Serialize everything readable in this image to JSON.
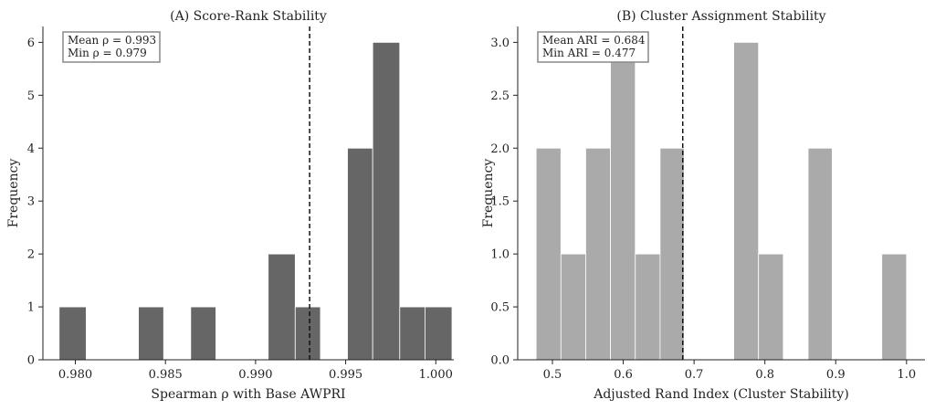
{
  "chart_data": [
    {
      "type": "bar",
      "title": "(A) Score-Rank Stability",
      "xlabel": "Spearman ρ with Base AWPRI",
      "ylabel": "Frequency",
      "xlim": [
        0.9782,
        1.001
      ],
      "ylim": [
        0,
        6.3
      ],
      "xticks": [
        0.98,
        0.985,
        0.99,
        0.995,
        1.0
      ],
      "xtick_labels": [
        "0.980",
        "0.985",
        "0.990",
        "0.995",
        "1.000"
      ],
      "yticks": [
        0,
        1,
        2,
        3,
        4,
        5,
        6
      ],
      "ytick_labels": [
        "0",
        "1",
        "2",
        "3",
        "4",
        "5",
        "6"
      ],
      "bar_color": "#666666",
      "bins": [
        {
          "x0": 0.9791,
          "x1": 0.9806,
          "value": 1
        },
        {
          "x0": 0.9806,
          "x1": 0.982,
          "value": 0
        },
        {
          "x0": 0.982,
          "x1": 0.9835,
          "value": 0
        },
        {
          "x0": 0.9835,
          "x1": 0.9849,
          "value": 1
        },
        {
          "x0": 0.9849,
          "x1": 0.9864,
          "value": 0
        },
        {
          "x0": 0.9864,
          "x1": 0.9878,
          "value": 1
        },
        {
          "x0": 0.9878,
          "x1": 0.9893,
          "value": 0
        },
        {
          "x0": 0.9893,
          "x1": 0.9907,
          "value": 0
        },
        {
          "x0": 0.9907,
          "x1": 0.9922,
          "value": 2
        },
        {
          "x0": 0.9922,
          "x1": 0.9936,
          "value": 1
        },
        {
          "x0": 0.9936,
          "x1": 0.9951,
          "value": 0
        },
        {
          "x0": 0.9951,
          "x1": 0.9965,
          "value": 4
        },
        {
          "x0": 0.9965,
          "x1": 0.998,
          "value": 6
        },
        {
          "x0": 0.998,
          "x1": 0.9994,
          "value": 1
        },
        {
          "x0": 0.9994,
          "x1": 1.0009,
          "value": 1
        }
      ],
      "mean_line": 0.993,
      "stats": [
        "Mean ρ = 0.993",
        "Min ρ = 0.979"
      ]
    },
    {
      "type": "bar",
      "title": "(B) Cluster Assignment Stability",
      "xlabel": "Adjusted Rand Index (Cluster Stability)",
      "ylabel": "Frequency",
      "xlim": [
        0.451,
        1.026
      ],
      "ylim": [
        0,
        3.15
      ],
      "xticks": [
        0.5,
        0.6,
        0.7,
        0.8,
        0.9,
        1.0
      ],
      "xtick_labels": [
        "0.5",
        "0.6",
        "0.7",
        "0.8",
        "0.9",
        "1.0"
      ],
      "yticks": [
        0,
        0.5,
        1.0,
        1.5,
        2.0,
        2.5,
        3.0
      ],
      "ytick_labels": [
        "0.0",
        "0.5",
        "1.0",
        "1.5",
        "2.0",
        "2.5",
        "3.0"
      ],
      "bar_color": "#aaaaaa",
      "bins": [
        {
          "x0": 0.477,
          "x1": 0.512,
          "value": 2
        },
        {
          "x0": 0.512,
          "x1": 0.547,
          "value": 1
        },
        {
          "x0": 0.547,
          "x1": 0.582,
          "value": 2
        },
        {
          "x0": 0.582,
          "x1": 0.617,
          "value": 3
        },
        {
          "x0": 0.617,
          "x1": 0.652,
          "value": 1
        },
        {
          "x0": 0.652,
          "x1": 0.686,
          "value": 2
        },
        {
          "x0": 0.686,
          "x1": 0.721,
          "value": 0
        },
        {
          "x0": 0.721,
          "x1": 0.756,
          "value": 0
        },
        {
          "x0": 0.756,
          "x1": 0.791,
          "value": 3
        },
        {
          "x0": 0.791,
          "x1": 0.826,
          "value": 1
        },
        {
          "x0": 0.826,
          "x1": 0.861,
          "value": 0
        },
        {
          "x0": 0.861,
          "x1": 0.895,
          "value": 2
        },
        {
          "x0": 0.895,
          "x1": 0.93,
          "value": 0
        },
        {
          "x0": 0.93,
          "x1": 0.965,
          "value": 0
        },
        {
          "x0": 0.965,
          "x1": 1.0,
          "value": 1
        }
      ],
      "mean_line": 0.684,
      "stats": [
        "Mean ARI = 0.684",
        "Min ARI = 0.477"
      ]
    }
  ]
}
